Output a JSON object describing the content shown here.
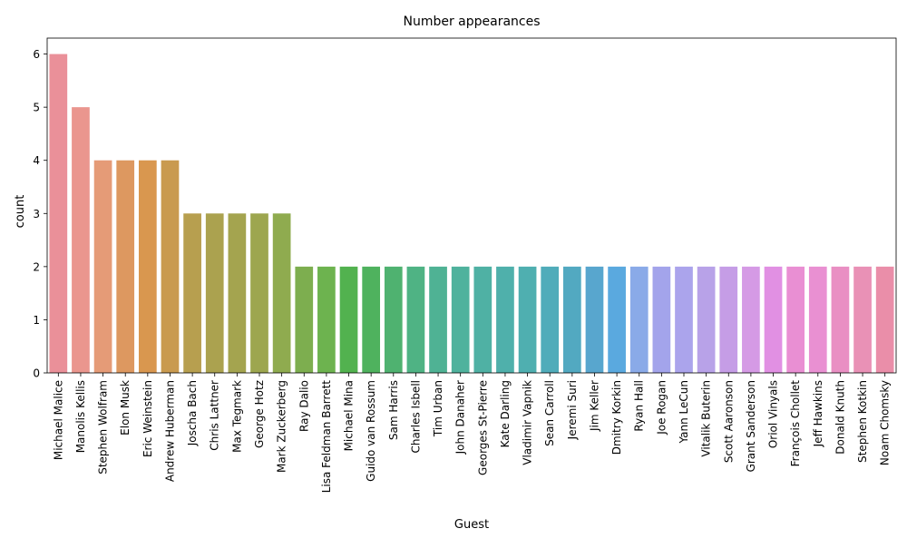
{
  "chart_data": {
    "type": "bar",
    "title": "Number appearances",
    "xlabel": "Guest",
    "ylabel": "count",
    "ylim": [
      0,
      6.3
    ],
    "yticks": [
      0,
      1,
      2,
      3,
      4,
      5,
      6
    ],
    "grid": false,
    "legend": "none",
    "categories": [
      "Michael Malice",
      "Manolis Kellis",
      "Stephen Wolfram",
      "Elon Musk",
      "Eric Weinstein",
      "Andrew Huberman",
      "Joscha Bach",
      "Chris Lattner",
      "Max Tegmark",
      "George Hotz",
      "Mark Zuckerberg",
      "Ray Dalio",
      "Lisa Feldman Barrett",
      "Michael Mina",
      "Guido van Rossum",
      "Sam Harris",
      "Charles Isbell",
      "Tim Urban",
      "John Danaher",
      "Georges St-Pierre",
      "Kate Darling",
      "Vladimir Vapnik",
      "Sean Carroll",
      "Jeremi Suri",
      "Jim Keller",
      "Dmitry Korkin",
      "Ryan Hall",
      "Joe Rogan",
      "Yann LeCun",
      "Vitalik Buterin",
      "Scott Aaronson",
      "Grant Sanderson",
      "Oriol Vinyals",
      "François Chollet",
      "Jeff Hawkins",
      "Donald Knuth",
      "Stephen Kotkin",
      "Noam Chomsky"
    ],
    "values": [
      6,
      5,
      4,
      4,
      4,
      4,
      3,
      3,
      3,
      3,
      3,
      2,
      2,
      2,
      2,
      2,
      2,
      2,
      2,
      2,
      2,
      2,
      2,
      2,
      2,
      2,
      2,
      2,
      2,
      2,
      2,
      2,
      2,
      2,
      2,
      2,
      2,
      2
    ],
    "colors": [
      "#ea9099",
      "#ea968e",
      "#e59b77",
      "#dd9860",
      "#d9974f",
      "#c99a4f",
      "#b79f4f",
      "#aba24f",
      "#a4a44f",
      "#9da64f",
      "#8fab4f",
      "#7dae4f",
      "#6db34f",
      "#52b24f",
      "#4fb25e",
      "#4fb270",
      "#4fb384",
      "#4fb294",
      "#4fb29d",
      "#4fb1a4",
      "#4fb0ab",
      "#4fafb0",
      "#50acba",
      "#52a9c1",
      "#58a6ce",
      "#5aa9df",
      "#8aaae8",
      "#a3a4eb",
      "#aba4ec",
      "#b8a2e8",
      "#c59de6",
      "#d59ae5",
      "#e190e3",
      "#e98fd3",
      "#e990d2",
      "#e98fc3",
      "#e991b6",
      "#ea8ea9"
    ]
  }
}
